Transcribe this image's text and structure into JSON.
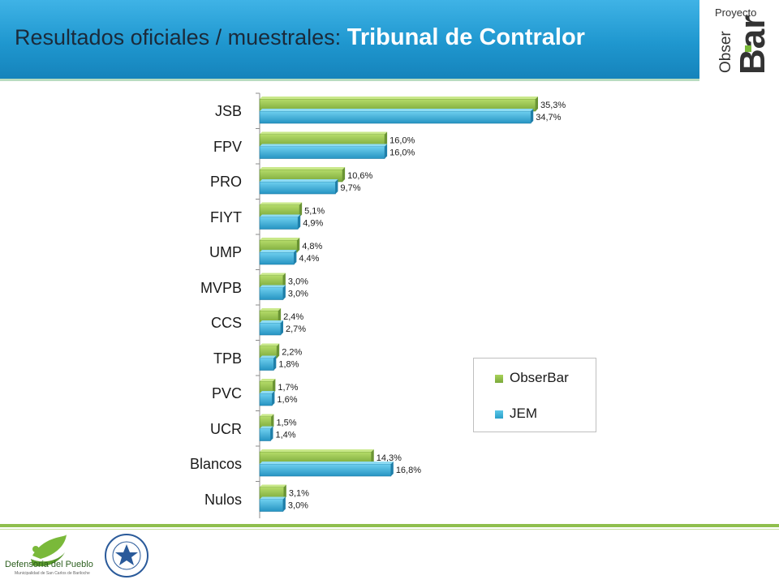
{
  "header": {
    "title_prefix": "Resultados  oficiales / muestrales:",
    "title_strong": "Tribunal de Contralor"
  },
  "logo": {
    "proyecto": "Proyecto",
    "obser": "Obser",
    "bar": "Bar"
  },
  "footer": {
    "org1": "Defensoría del Pueblo",
    "org1_sub": "Municipalidad de San Carlos de Bariloche"
  },
  "chart_data": {
    "type": "bar",
    "orientation": "horizontal",
    "categories": [
      "JSB",
      "FPV",
      "PRO",
      "FIYT",
      "UMP",
      "MVPB",
      "CCS",
      "TPB",
      "PVC",
      "UCR",
      "Blancos",
      "Nulos"
    ],
    "series": [
      {
        "name": "ObserBar",
        "color": "#8fbf3c",
        "values": [
          35.3,
          16.0,
          10.6,
          5.1,
          4.8,
          3.0,
          2.4,
          2.2,
          1.7,
          1.5,
          14.3,
          3.1
        ],
        "labels": [
          "35,3%",
          "16,0%",
          "10,6%",
          "5,1%",
          "4,8%",
          "3,0%",
          "2,4%",
          "2,2%",
          "1,7%",
          "1,5%",
          "14,3%",
          "3,1%"
        ]
      },
      {
        "name": "JEM",
        "color": "#2a9fc9",
        "values": [
          34.7,
          16.0,
          9.7,
          4.9,
          4.4,
          3.0,
          2.7,
          1.8,
          1.6,
          1.4,
          16.8,
          3.0
        ],
        "labels": [
          "34,7%",
          "16,0%",
          "9,7%",
          "4,9%",
          "4,4%",
          "3,0%",
          "2,7%",
          "1,8%",
          "1,6%",
          "1,4%",
          "16,8%",
          "3,0%"
        ]
      }
    ],
    "xlim": [
      0,
      36
    ],
    "legend": "center-right",
    "grid": false
  }
}
